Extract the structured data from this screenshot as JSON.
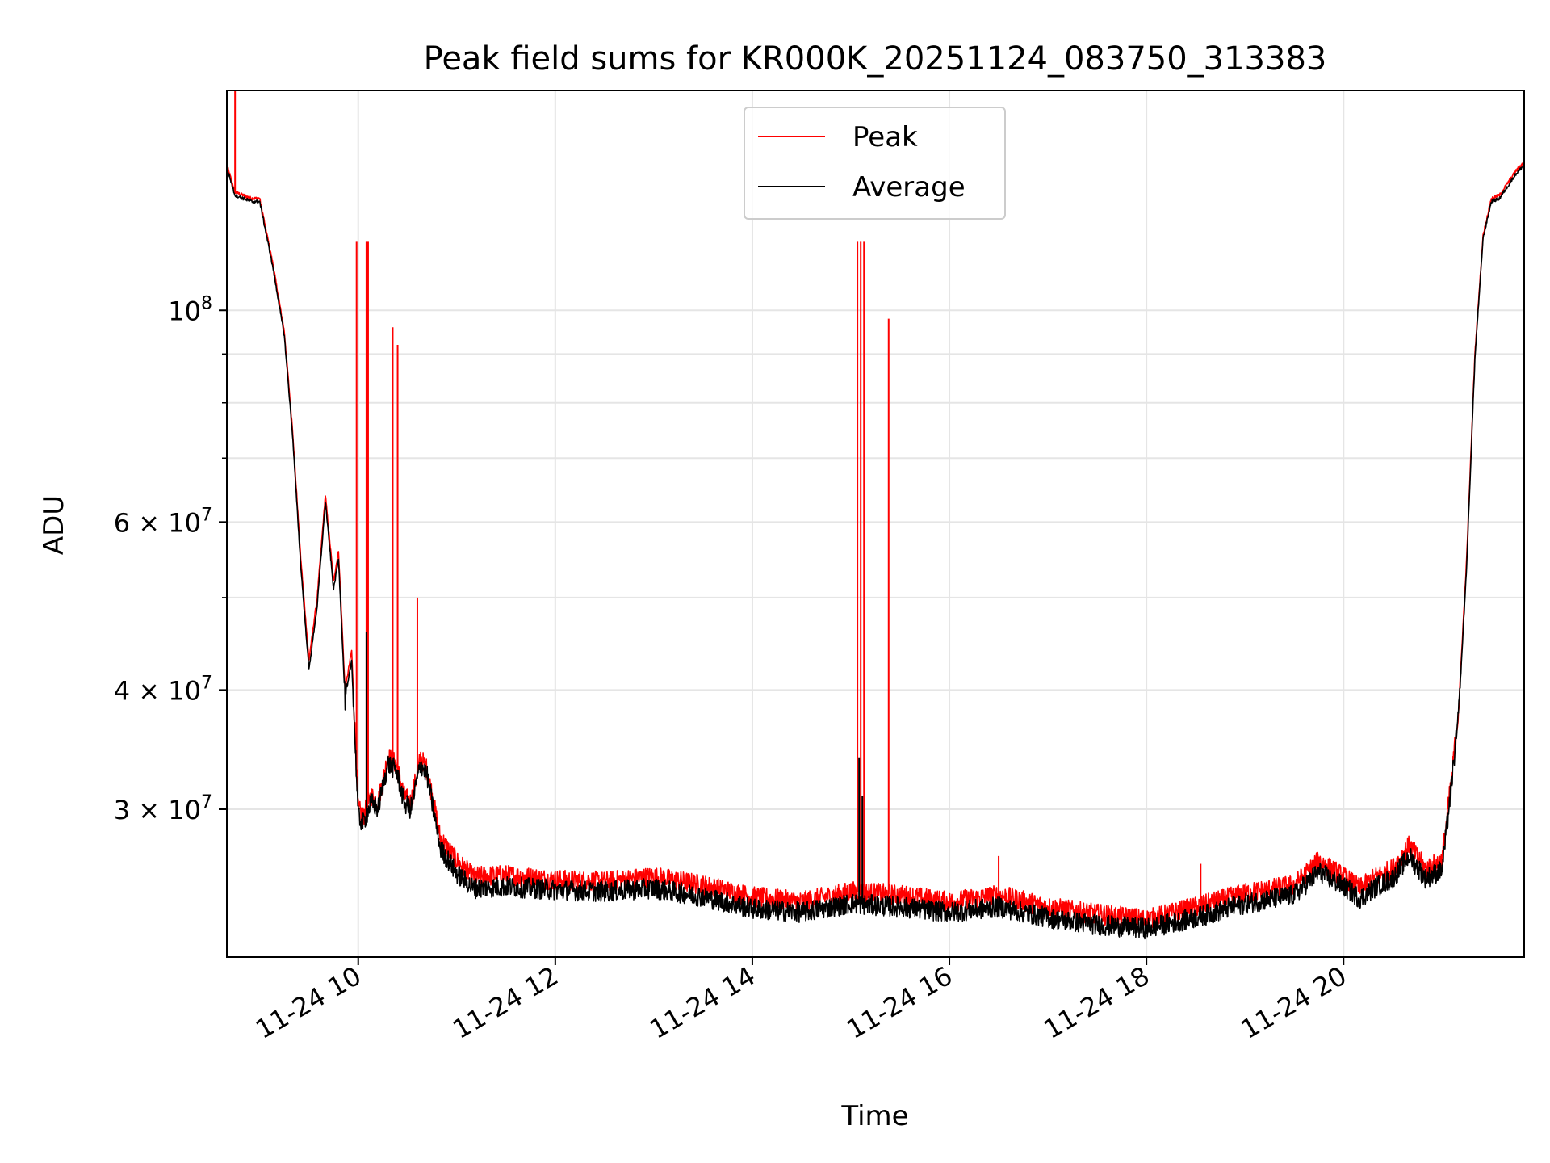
{
  "chart_data": {
    "type": "line",
    "title": "Peak field sums for KR000K_20251124_083750_313383",
    "xlabel": "Time",
    "ylabel": "ADU",
    "yscale": "log",
    "ylim": [
      21000000,
      170000000
    ],
    "xlim": [
      "2025-11-24 08:40",
      "2025-11-24 21:50"
    ],
    "grid": true,
    "legend_position": "top-center",
    "x_ticks": [
      {
        "t": "2025-11-24 10:00",
        "label": "11-24 10"
      },
      {
        "t": "2025-11-24 12:00",
        "label": "11-24 12"
      },
      {
        "t": "2025-11-24 14:00",
        "label": "11-24 14"
      },
      {
        "t": "2025-11-24 16:00",
        "label": "11-24 16"
      },
      {
        "t": "2025-11-24 18:00",
        "label": "11-24 18"
      },
      {
        "t": "2025-11-24 20:00",
        "label": "11-24 20"
      }
    ],
    "y_ticks": [
      {
        "value": 100000000,
        "base": "10",
        "exp": "8",
        "mant": ""
      },
      {
        "value": 60000000,
        "base": "10",
        "exp": "7",
        "mant": "6 × "
      },
      {
        "value": 40000000,
        "base": "10",
        "exp": "7",
        "mant": "4 × "
      },
      {
        "value": 30000000,
        "base": "10",
        "exp": "7",
        "mant": "3 × "
      }
    ],
    "y_minor_ticks": [
      20000000,
      50000000,
      70000000,
      80000000,
      90000000
    ],
    "series": [
      {
        "name": "Peak",
        "color": "#ff0000",
        "points": [
          [
            "2025-11-24 08:40",
            142000000
          ],
          [
            "2025-11-24 08:45",
            133000000
          ],
          [
            "2025-11-24 08:50",
            132000000
          ],
          [
            "2025-11-24 08:55",
            131000000
          ],
          [
            "2025-11-24 09:00",
            131000000
          ],
          [
            "2025-11-24 09:08",
            112000000
          ],
          [
            "2025-11-24 09:15",
            95000000
          ],
          [
            "2025-11-24 09:20",
            75000000
          ],
          [
            "2025-11-24 09:25",
            55000000
          ],
          [
            "2025-11-24 09:30",
            43000000
          ],
          [
            "2025-11-24 09:35",
            50000000
          ],
          [
            "2025-11-24 09:40",
            64000000
          ],
          [
            "2025-11-24 09:45",
            52000000
          ],
          [
            "2025-11-24 09:48",
            56000000
          ],
          [
            "2025-11-24 09:52",
            40000000
          ],
          [
            "2025-11-24 09:56",
            44000000
          ],
          [
            "2025-11-24 10:00",
            30000000
          ],
          [
            "2025-11-24 10:03",
            29500000
          ],
          [
            "2025-11-24 10:08",
            31000000
          ],
          [
            "2025-11-24 10:12",
            30500000
          ],
          [
            "2025-11-24 10:18",
            34000000
          ],
          [
            "2025-11-24 10:23",
            33500000
          ],
          [
            "2025-11-24 10:28",
            31000000
          ],
          [
            "2025-11-24 10:32",
            30500000
          ],
          [
            "2025-11-24 10:38",
            34000000
          ],
          [
            "2025-11-24 10:42",
            33000000
          ],
          [
            "2025-11-24 10:50",
            28000000
          ],
          [
            "2025-11-24 11:00",
            26500000
          ],
          [
            "2025-11-24 11:10",
            25500000
          ],
          [
            "2025-11-24 11:30",
            25600000
          ],
          [
            "2025-11-24 12:00",
            25300000
          ],
          [
            "2025-11-24 12:30",
            25200000
          ],
          [
            "2025-11-24 13:00",
            25500000
          ],
          [
            "2025-11-24 13:30",
            25000000
          ],
          [
            "2025-11-24 14:00",
            24300000
          ],
          [
            "2025-11-24 14:30",
            24000000
          ],
          [
            "2025-11-24 15:00",
            24600000
          ],
          [
            "2025-11-24 15:30",
            24400000
          ],
          [
            "2025-11-24 16:00",
            24000000
          ],
          [
            "2025-11-24 16:30",
            24400000
          ],
          [
            "2025-11-24 17:00",
            23700000
          ],
          [
            "2025-11-24 17:30",
            23300000
          ],
          [
            "2025-11-24 18:00",
            23000000
          ],
          [
            "2025-11-24 18:30",
            23700000
          ],
          [
            "2025-11-24 19:00",
            24500000
          ],
          [
            "2025-11-24 19:30",
            25000000
          ],
          [
            "2025-11-24 19:45",
            26500000
          ],
          [
            "2025-11-24 20:00",
            25500000
          ],
          [
            "2025-11-24 20:10",
            24800000
          ],
          [
            "2025-11-24 20:20",
            25500000
          ],
          [
            "2025-11-24 20:30",
            26000000
          ],
          [
            "2025-11-24 20:40",
            27500000
          ],
          [
            "2025-11-24 20:50",
            26000000
          ],
          [
            "2025-11-24 21:00",
            26500000
          ],
          [
            "2025-11-24 21:05",
            31500000
          ],
          [
            "2025-11-24 21:10",
            38000000
          ],
          [
            "2025-11-24 21:15",
            55000000
          ],
          [
            "2025-11-24 21:20",
            90000000
          ],
          [
            "2025-11-24 21:25",
            120000000
          ],
          [
            "2025-11-24 21:30",
            131000000
          ],
          [
            "2025-11-24 21:35",
            132000000
          ],
          [
            "2025-11-24 21:40",
            136000000
          ],
          [
            "2025-11-24 21:45",
            140000000
          ],
          [
            "2025-11-24 21:50",
            143000000
          ]
        ],
        "spikes": [
          [
            "2025-11-24 08:45",
            170000000
          ],
          [
            "2025-11-24 09:59",
            118000000
          ],
          [
            "2025-11-24 10:05",
            118000000
          ],
          [
            "2025-11-24 10:06",
            118000000
          ],
          [
            "2025-11-24 10:21",
            96000000
          ],
          [
            "2025-11-24 10:24",
            92000000
          ],
          [
            "2025-11-24 10:36",
            50000000
          ],
          [
            "2025-11-24 15:04",
            118000000
          ],
          [
            "2025-11-24 15:06",
            118000000
          ],
          [
            "2025-11-24 15:08",
            118000000
          ],
          [
            "2025-11-24 15:23",
            98000000
          ],
          [
            "2025-11-24 16:30",
            26800000
          ],
          [
            "2025-11-24 18:33",
            26300000
          ],
          [
            "2025-11-24 19:44",
            26700000
          ]
        ]
      },
      {
        "name": "Average",
        "color": "#000000",
        "points": [
          [
            "2025-11-24 08:40",
            141000000
          ],
          [
            "2025-11-24 08:45",
            132000000
          ],
          [
            "2025-11-24 08:50",
            131000000
          ],
          [
            "2025-11-24 08:55",
            130000000
          ],
          [
            "2025-11-24 09:00",
            130000000
          ],
          [
            "2025-11-24 09:08",
            111000000
          ],
          [
            "2025-11-24 09:15",
            94000000
          ],
          [
            "2025-11-24 09:20",
            74000000
          ],
          [
            "2025-11-24 09:25",
            54000000
          ],
          [
            "2025-11-24 09:30",
            42000000
          ],
          [
            "2025-11-24 09:35",
            49000000
          ],
          [
            "2025-11-24 09:40",
            63000000
          ],
          [
            "2025-11-24 09:45",
            51000000
          ],
          [
            "2025-11-24 09:48",
            55000000
          ],
          [
            "2025-11-24 09:52",
            39000000
          ],
          [
            "2025-11-24 09:56",
            43000000
          ],
          [
            "2025-11-24 10:00",
            29500000
          ],
          [
            "2025-11-24 10:03",
            29000000
          ],
          [
            "2025-11-24 10:08",
            30500000
          ],
          [
            "2025-11-24 10:12",
            30000000
          ],
          [
            "2025-11-24 10:18",
            33500000
          ],
          [
            "2025-11-24 10:23",
            33000000
          ],
          [
            "2025-11-24 10:28",
            30500000
          ],
          [
            "2025-11-24 10:32",
            30000000
          ],
          [
            "2025-11-24 10:38",
            33500000
          ],
          [
            "2025-11-24 10:42",
            32500000
          ],
          [
            "2025-11-24 10:50",
            27300000
          ],
          [
            "2025-11-24 11:00",
            25700000
          ],
          [
            "2025-11-24 11:10",
            24800000
          ],
          [
            "2025-11-24 11:30",
            24900000
          ],
          [
            "2025-11-24 12:00",
            24700000
          ],
          [
            "2025-11-24 12:30",
            24600000
          ],
          [
            "2025-11-24 13:00",
            24800000
          ],
          [
            "2025-11-24 13:30",
            24300000
          ],
          [
            "2025-11-24 14:00",
            23600000
          ],
          [
            "2025-11-24 14:30",
            23400000
          ],
          [
            "2025-11-24 15:00",
            23900000
          ],
          [
            "2025-11-24 15:30",
            23700000
          ],
          [
            "2025-11-24 16:00",
            23400000
          ],
          [
            "2025-11-24 16:30",
            23700000
          ],
          [
            "2025-11-24 17:00",
            23100000
          ],
          [
            "2025-11-24 17:30",
            22700000
          ],
          [
            "2025-11-24 18:00",
            22500000
          ],
          [
            "2025-11-24 18:30",
            23100000
          ],
          [
            "2025-11-24 19:00",
            23900000
          ],
          [
            "2025-11-24 19:30",
            24400000
          ],
          [
            "2025-11-24 19:45",
            25800000
          ],
          [
            "2025-11-24 20:00",
            24900000
          ],
          [
            "2025-11-24 20:10",
            24200000
          ],
          [
            "2025-11-24 20:20",
            24900000
          ],
          [
            "2025-11-24 20:30",
            25400000
          ],
          [
            "2025-11-24 20:40",
            26800000
          ],
          [
            "2025-11-24 20:50",
            25400000
          ],
          [
            "2025-11-24 21:00",
            25900000
          ],
          [
            "2025-11-24 21:05",
            31000000
          ],
          [
            "2025-11-24 21:10",
            37500000
          ],
          [
            "2025-11-24 21:15",
            54000000
          ],
          [
            "2025-11-24 21:20",
            89000000
          ],
          [
            "2025-11-24 21:25",
            119000000
          ],
          [
            "2025-11-24 21:30",
            130000000
          ],
          [
            "2025-11-24 21:35",
            131000000
          ],
          [
            "2025-11-24 21:40",
            135000000
          ],
          [
            "2025-11-24 21:45",
            139000000
          ],
          [
            "2025-11-24 21:50",
            142000000
          ]
        ],
        "spikes": [
          [
            "2025-11-24 10:05",
            46000000
          ],
          [
            "2025-11-24 15:05",
            34000000
          ],
          [
            "2025-11-24 15:07",
            31000000
          ]
        ]
      }
    ]
  }
}
